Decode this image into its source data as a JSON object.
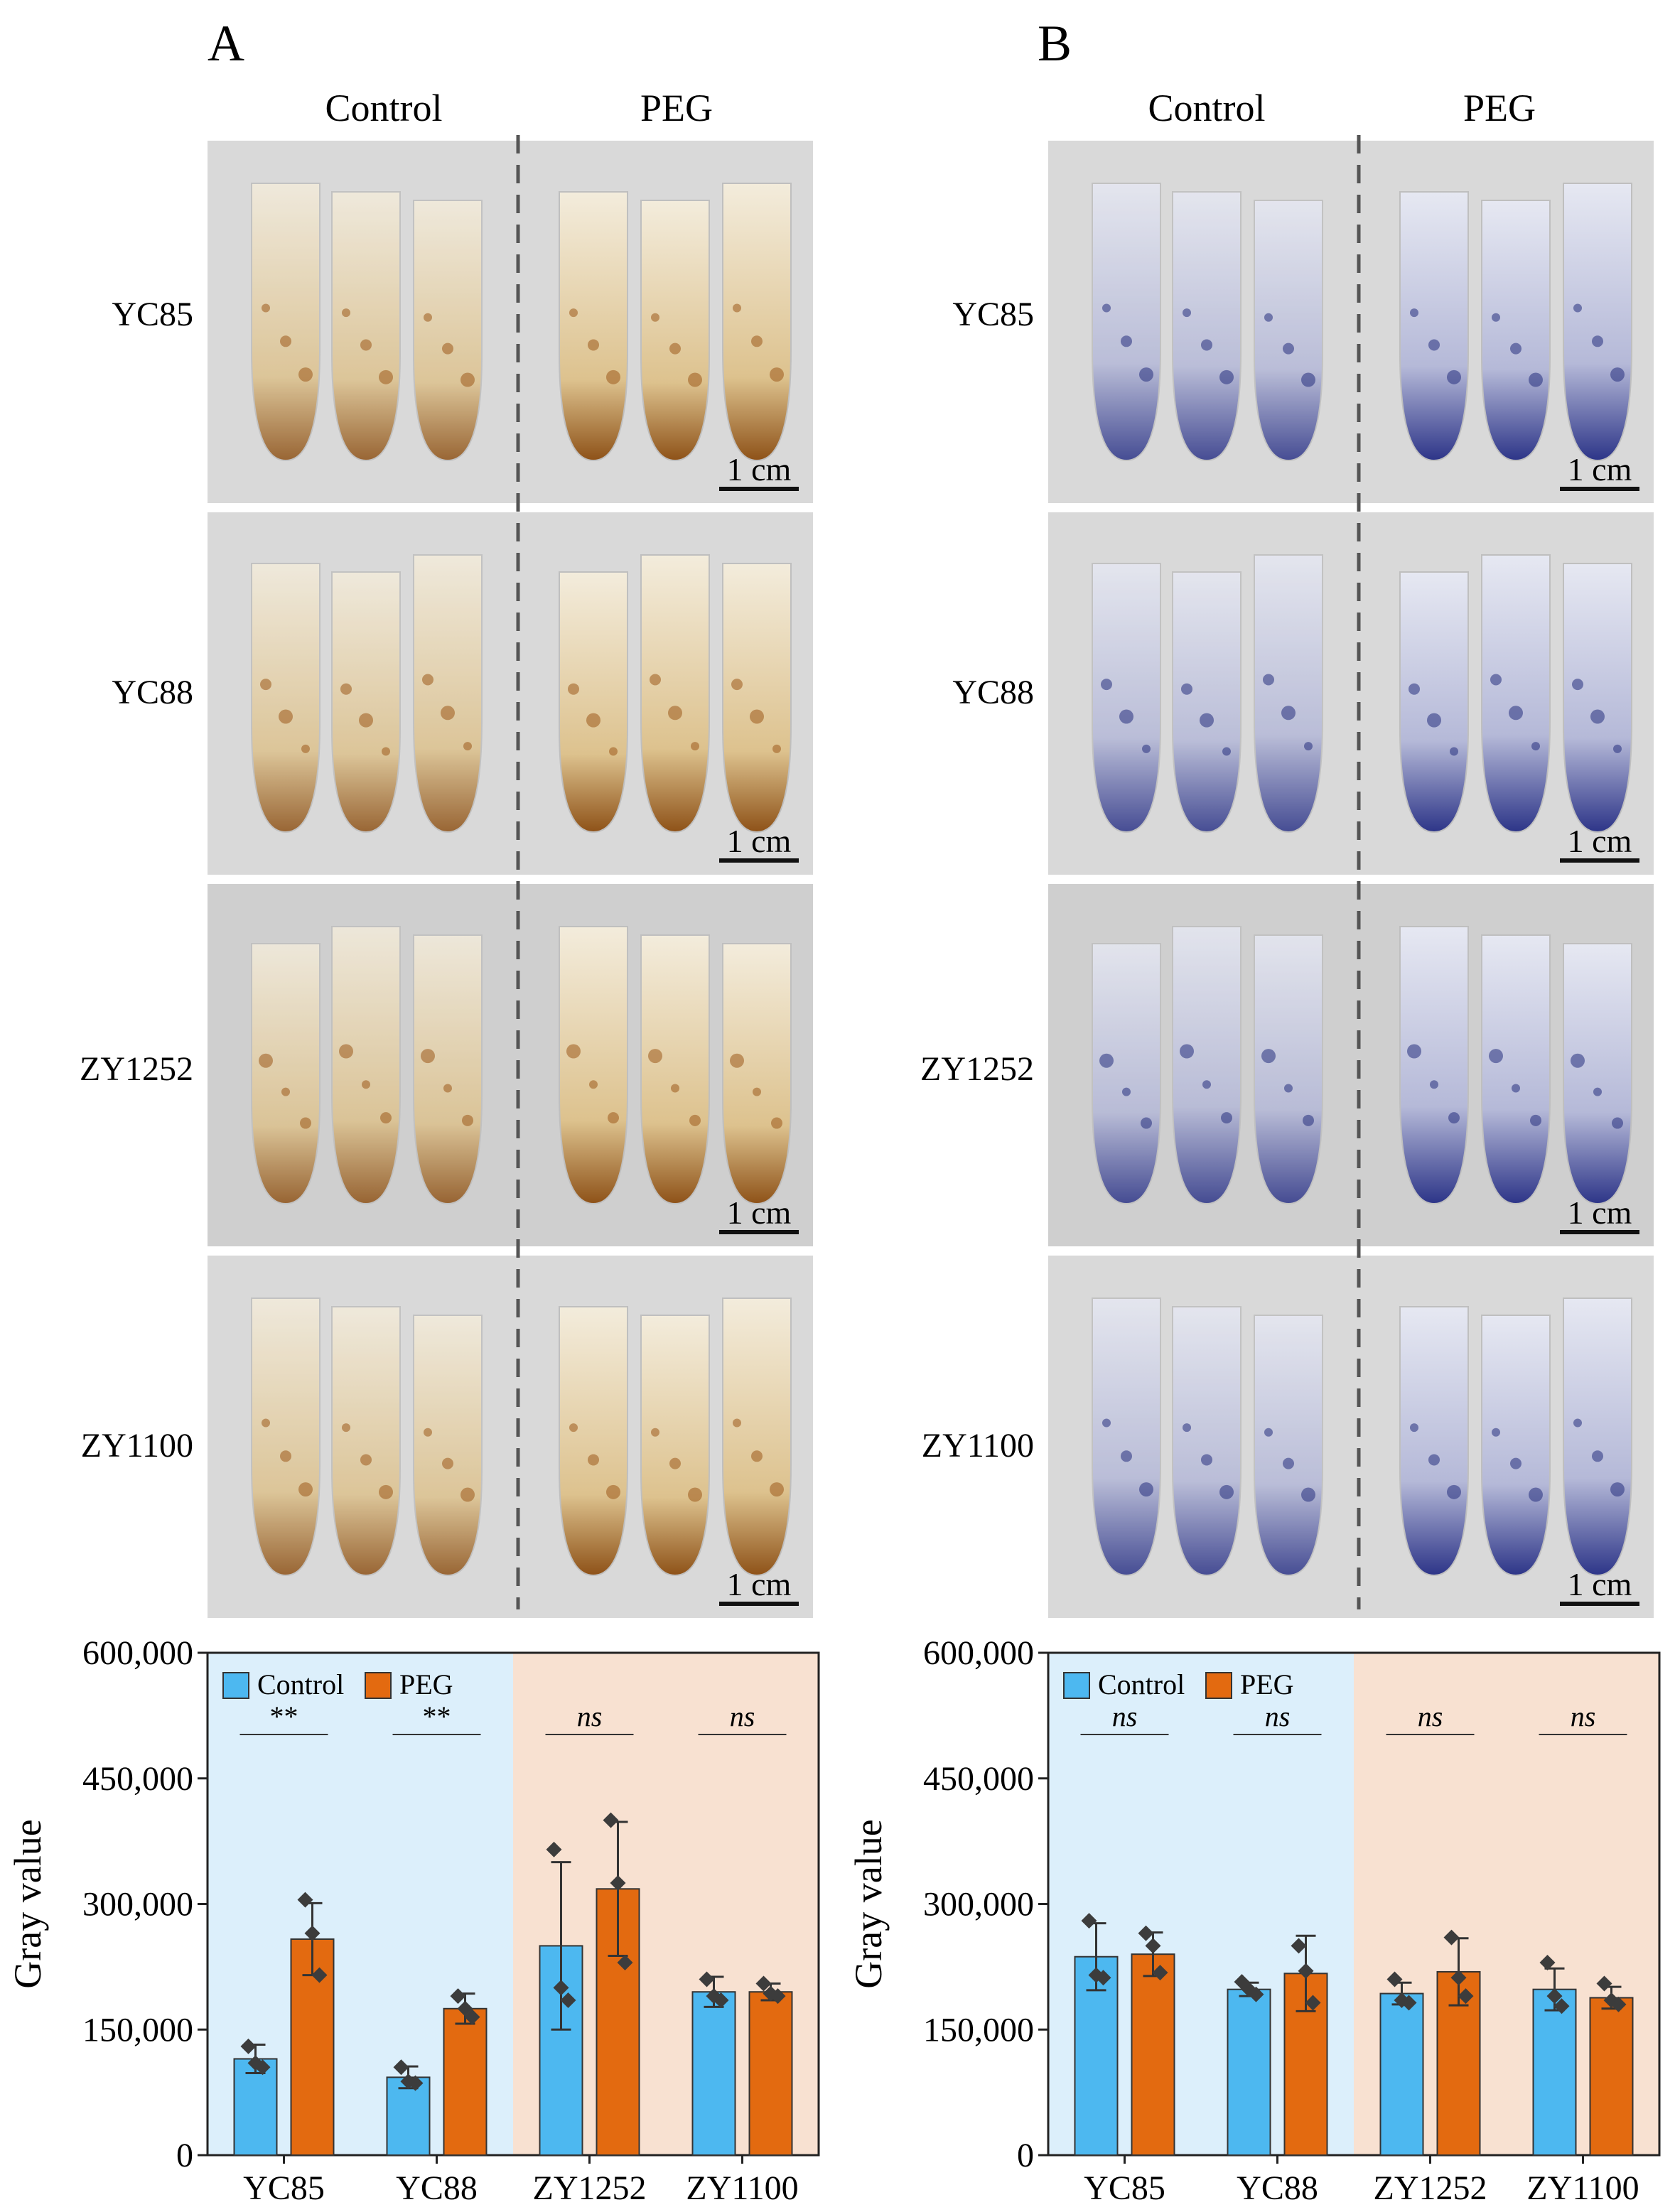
{
  "colors": {
    "control": "#4DB8F0",
    "peg": "#E36A10",
    "bg_tolerant": "#DCEFFB",
    "bg_sensitive": "#F8E1D1",
    "dot": "#3C3C3C",
    "photo_bg": "#D9D9D9",
    "stain_dab": "#9C5A1C",
    "stain_nbt": "#27307E"
  },
  "panels": [
    {
      "letter": "A",
      "stain": "brown",
      "col_headers": [
        "Control",
        "PEG"
      ],
      "row_labels": [
        "YC85",
        "YC88",
        "ZY1252",
        "ZY1100"
      ],
      "scale_label": "1 cm"
    },
    {
      "letter": "B",
      "stain": "blue",
      "col_headers": [
        "Control",
        "PEG"
      ],
      "row_labels": [
        "YC85",
        "YC88",
        "ZY1252",
        "ZY1100"
      ],
      "scale_label": "1 cm"
    }
  ],
  "chart_data": [
    {
      "type": "bar",
      "panel": "A",
      "ylabel": "Gray value",
      "ylim": [
        0,
        600000
      ],
      "yticks": [
        "0",
        "150,000",
        "300,000",
        "450,000",
        "600,000"
      ],
      "ytick_values": [
        0,
        150000,
        300000,
        450000,
        600000
      ],
      "categories": [
        "YC85",
        "YC88",
        "ZY1252",
        "ZY1100"
      ],
      "legend": [
        "Control",
        "PEG"
      ],
      "legend_position": "top-left",
      "series": [
        {
          "name": "Control",
          "values": [
            115000,
            93000,
            250000,
            195000
          ],
          "errors": [
            17000,
            13000,
            100000,
            18000
          ],
          "points": [
            [
              130000,
              110000,
              105000
            ],
            [
              105000,
              88000,
              86000
            ],
            [
              365000,
              200000,
              185000
            ],
            [
              210000,
              190000,
              185000
            ]
          ]
        },
        {
          "name": "PEG",
          "values": [
            258000,
            175000,
            318000,
            195000
          ],
          "errors": [
            43000,
            18000,
            80000,
            10000
          ],
          "points": [
            [
              305000,
              265000,
              215000
            ],
            [
              190000,
              175000,
              165000
            ],
            [
              400000,
              325000,
              230000
            ],
            [
              205000,
              193000,
              190000
            ]
          ]
        }
      ],
      "significance": [
        "**",
        "**",
        "ns",
        "ns"
      ],
      "background_groups": [
        {
          "categories": [
            "YC85",
            "YC88"
          ],
          "color": "#DCEFFB"
        },
        {
          "categories": [
            "ZY1252",
            "ZY1100"
          ],
          "color": "#F8E1D1"
        }
      ]
    },
    {
      "type": "bar",
      "panel": "B",
      "ylabel": "Gray value",
      "ylim": [
        0,
        600000
      ],
      "yticks": [
        "0",
        "150,000",
        "300,000",
        "450,000",
        "600,000"
      ],
      "ytick_values": [
        0,
        150000,
        300000,
        450000,
        600000
      ],
      "categories": [
        "YC85",
        "YC88",
        "ZY1252",
        "ZY1100"
      ],
      "legend": [
        "Control",
        "PEG"
      ],
      "legend_position": "top-left",
      "series": [
        {
          "name": "Control",
          "values": [
            237000,
            198000,
            193000,
            198000
          ],
          "errors": [
            40000,
            8000,
            13000,
            25000
          ],
          "points": [
            [
              280000,
              215000,
              212000
            ],
            [
              207000,
              198000,
              192000
            ],
            [
              210000,
              185000,
              182000
            ],
            [
              230000,
              190000,
              178000
            ]
          ]
        },
        {
          "name": "PEG",
          "values": [
            240000,
            217000,
            219000,
            188000
          ],
          "errors": [
            26000,
            45000,
            40000,
            13000
          ],
          "points": [
            [
              265000,
              250000,
              218000
            ],
            [
              250000,
              220000,
              182000
            ],
            [
              260000,
              212000,
              190000
            ],
            [
              205000,
              185000,
              180000
            ]
          ]
        }
      ],
      "significance": [
        "ns",
        "ns",
        "ns",
        "ns"
      ],
      "background_groups": [
        {
          "categories": [
            "YC85",
            "YC88"
          ],
          "color": "#DCEFFB"
        },
        {
          "categories": [
            "ZY1252",
            "ZY1100"
          ],
          "color": "#F8E1D1"
        }
      ]
    }
  ]
}
